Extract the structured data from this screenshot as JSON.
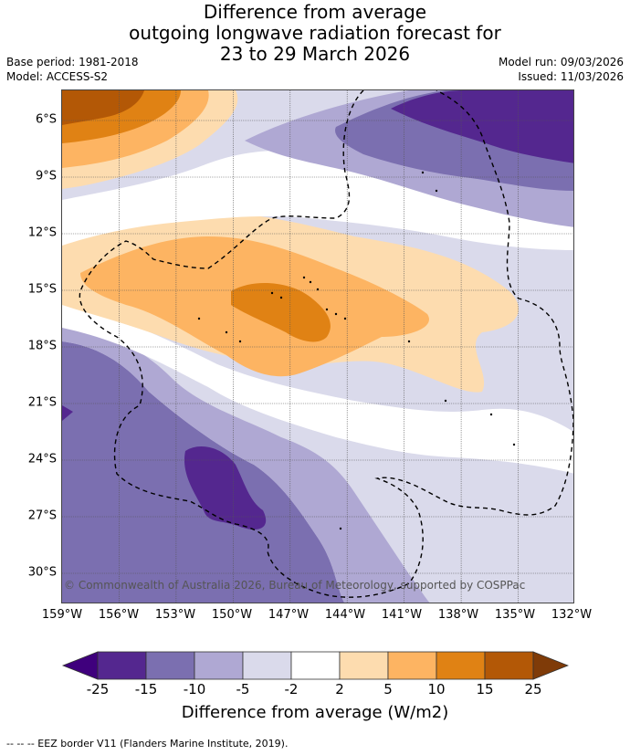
{
  "title": {
    "line1": "Difference from average",
    "line2": "outgoing longwave radiation forecast for",
    "line3": "23 to 29 March 2026"
  },
  "meta": {
    "base_period": "Base period: 1981-2018",
    "model": "Model: ACCESS-S2",
    "model_run": "Model run: 09/03/2026",
    "issued": "Issued: 11/03/2026"
  },
  "map": {
    "lat_labels": [
      "6°S",
      "9°S",
      "12°S",
      "15°S",
      "18°S",
      "21°S",
      "24°S",
      "27°S",
      "30°S"
    ],
    "lon_labels": [
      "159°W",
      "156°W",
      "153°W",
      "150°W",
      "147°W",
      "144°W",
      "141°W",
      "138°W",
      "135°W",
      "132°W"
    ],
    "copyright": "© Commonwealth of Australia 2026, Bureau of Meteorology, supported by COSPPac"
  },
  "colorbar": {
    "ticks": [
      "-25",
      "-15",
      "-10",
      "-5",
      "-2",
      "2",
      "5",
      "10",
      "15",
      "25"
    ],
    "colors": [
      "#3f007d",
      "#54278f",
      "#7b6fb0",
      "#afa8d3",
      "#dadaeb",
      "#ffffff",
      "#fddcaf",
      "#fdb462",
      "#e08214",
      "#b35806",
      "#7f3b08"
    ],
    "label": "Difference from average (W/m2)"
  },
  "footnote": "-- -- -- EEZ border V11 (Flanders Marine Institute, 2019)."
}
